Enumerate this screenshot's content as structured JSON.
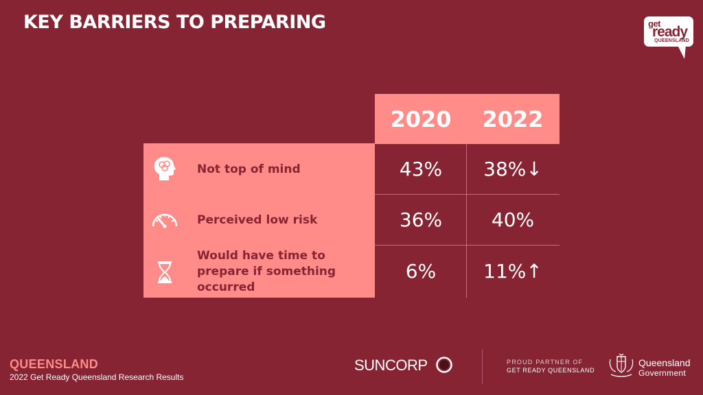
{
  "slide": {
    "title": "KEY BARRIERS TO PREPARING"
  },
  "logo": {
    "get": "get",
    "ready": "ready",
    "queensland": "QUEENSLAND"
  },
  "table": {
    "years": [
      "2020",
      "2022"
    ],
    "rows": [
      {
        "icon": "brain-head-icon",
        "label": "Not top of mind",
        "v2020": "43%",
        "v2022": "38%↓"
      },
      {
        "icon": "gauge-icon",
        "label": "Perceived low risk",
        "v2020": "36%",
        "v2022": "40%"
      },
      {
        "icon": "hourglass-icon",
        "label": "Would have time to prepare if something occurred",
        "v2020": "6%",
        "v2022": "11%↑"
      }
    ]
  },
  "footer": {
    "queensland": "QUEENSLAND",
    "subtitle": "2022 Get Ready Queensland Research Results",
    "suncorp": "SUNCORP",
    "partner_line1": "PROUD PARTNER OF",
    "partner_line2": "GET READY QUEENSLAND",
    "gov_line1": "Queensland",
    "gov_line2": "Government"
  },
  "colors": {
    "background": "#862433",
    "accent": "#ff8c89",
    "text": "#ffffff"
  }
}
